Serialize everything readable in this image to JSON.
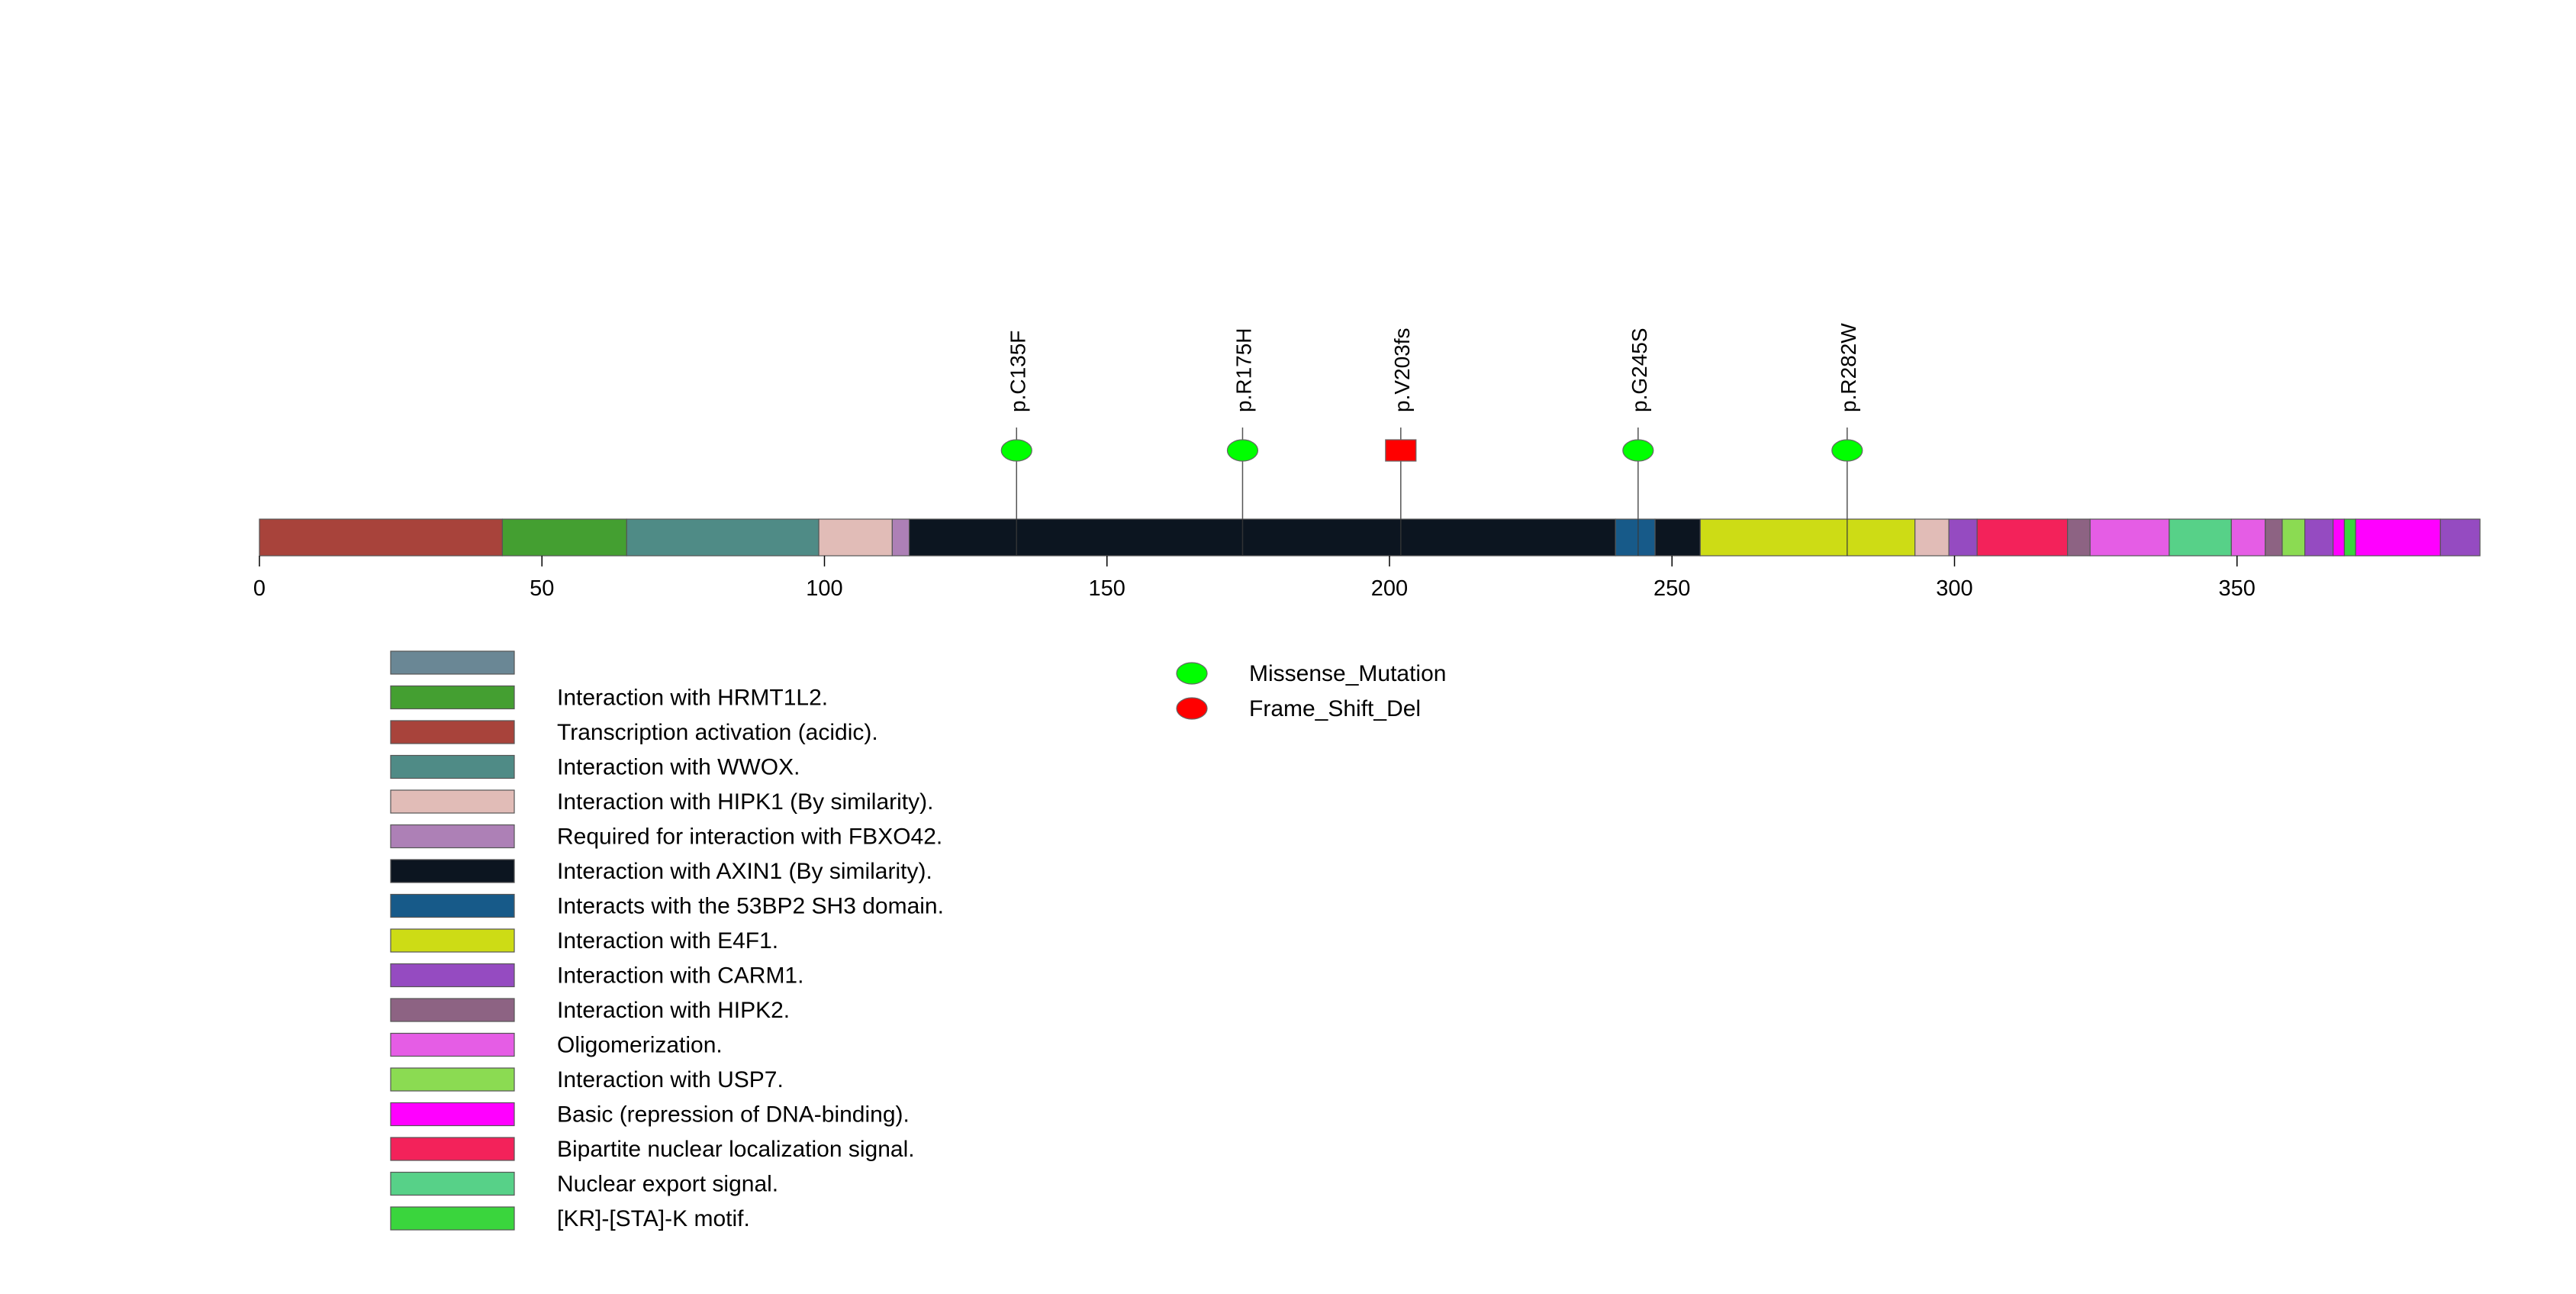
{
  "chart_data": {
    "type": "lollipop",
    "title": "",
    "protein_length": 393,
    "x_ticks": [
      0,
      50,
      100,
      150,
      200,
      250,
      300,
      350
    ],
    "domains": [
      {
        "start": 0,
        "end": 43,
        "color": "#a8433b"
      },
      {
        "start": 43,
        "end": 65,
        "color": "#449f31"
      },
      {
        "start": 65,
        "end": 99,
        "color": "#4f8b86"
      },
      {
        "start": 99,
        "end": 112,
        "color": "#e1bcb7"
      },
      {
        "start": 112,
        "end": 115,
        "color": "#ad80b6"
      },
      {
        "start": 115,
        "end": 240,
        "color": "#0c1520"
      },
      {
        "start": 240,
        "end": 247,
        "color": "#175a89"
      },
      {
        "start": 247,
        "end": 255,
        "color": "#0c1520"
      },
      {
        "start": 255,
        "end": 293,
        "color": "#cddc15"
      },
      {
        "start": 293,
        "end": 299,
        "color": "#e1bcb7"
      },
      {
        "start": 299,
        "end": 304,
        "color": "#954bc1"
      },
      {
        "start": 304,
        "end": 320,
        "color": "#f3225a"
      },
      {
        "start": 320,
        "end": 324,
        "color": "#8d6383"
      },
      {
        "start": 324,
        "end": 338,
        "color": "#e55de5"
      },
      {
        "start": 338,
        "end": 349,
        "color": "#57d188"
      },
      {
        "start": 349,
        "end": 355,
        "color": "#e55de5"
      },
      {
        "start": 355,
        "end": 358,
        "color": "#8d6383"
      },
      {
        "start": 358,
        "end": 362,
        "color": "#8bdb52"
      },
      {
        "start": 362,
        "end": 367,
        "color": "#954bc1"
      },
      {
        "start": 367,
        "end": 369,
        "color": "#ff00ff"
      },
      {
        "start": 369,
        "end": 371,
        "color": "#3ad53d"
      },
      {
        "start": 371,
        "end": 386,
        "color": "#ff00ff"
      },
      {
        "start": 386,
        "end": 393,
        "color": "#954bc1"
      }
    ],
    "mutations": [
      {
        "position": 134,
        "label": "p.C135F",
        "type": "Missense_Mutation"
      },
      {
        "position": 174,
        "label": "p.R175H",
        "type": "Missense_Mutation"
      },
      {
        "position": 202,
        "label": "p.V203fs",
        "type": "Frame_Shift_Del"
      },
      {
        "position": 244,
        "label": "p.G245S",
        "type": "Missense_Mutation"
      },
      {
        "position": 281,
        "label": "p.R282W",
        "type": "Missense_Mutation"
      }
    ],
    "domain_legend": [
      {
        "label": "",
        "color": "#6a8795"
      },
      {
        "label": "Interaction with HRMT1L2.",
        "color": "#449f31"
      },
      {
        "label": "Transcription activation (acidic).",
        "color": "#a8433b"
      },
      {
        "label": "Interaction with WWOX.",
        "color": "#4f8b86"
      },
      {
        "label": "Interaction with HIPK1 (By similarity).",
        "color": "#e1bcb7"
      },
      {
        "label": "Required for interaction with FBXO42.",
        "color": "#ad80b6"
      },
      {
        "label": "Interaction with AXIN1 (By similarity).",
        "color": "#0c1520"
      },
      {
        "label": "Interacts with the 53BP2 SH3 domain.",
        "color": "#175a89"
      },
      {
        "label": "Interaction with E4F1.",
        "color": "#cddc15"
      },
      {
        "label": "Interaction with CARM1.",
        "color": "#954bc1"
      },
      {
        "label": "Interaction with HIPK2.",
        "color": "#8d6383"
      },
      {
        "label": "Oligomerization.",
        "color": "#e55de5"
      },
      {
        "label": "Interaction with USP7.",
        "color": "#8bdb52"
      },
      {
        "label": "Basic (repression of DNA-binding).",
        "color": "#ff00ff"
      },
      {
        "label": "Bipartite nuclear localization signal.",
        "color": "#f3225a"
      },
      {
        "label": "Nuclear export signal.",
        "color": "#57d188"
      },
      {
        "label": "[KR]-[STA]-K motif.",
        "color": "#3ad53d"
      }
    ],
    "mutation_legend": [
      {
        "label": "Missense_Mutation",
        "color": "#00ff00"
      },
      {
        "label": "Frame_Shift_Del",
        "color": "#ff0000"
      }
    ]
  }
}
